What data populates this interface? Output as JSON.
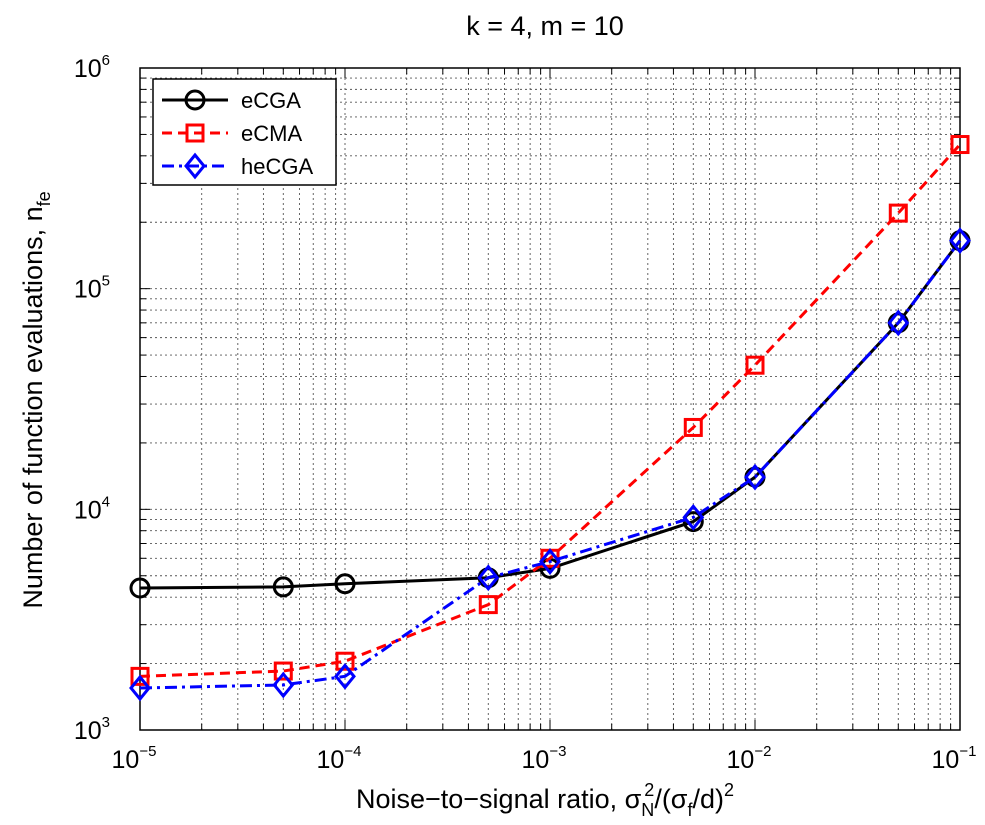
{
  "chart_data": {
    "type": "line",
    "title": "k = 4, m = 10",
    "xlabel": {
      "prefix": "Noise−to−signal ratio, σ",
      "sub1": "N",
      "sup1": "2",
      "mid": "/(σ",
      "sub2": "f",
      "suffix": "/d)",
      "sup2": "2"
    },
    "ylabel": {
      "prefix": "Number of function evaluations, n",
      "sub": "fe"
    },
    "xscale": "log",
    "yscale": "log",
    "xlim": [
      1e-05,
      0.1
    ],
    "ylim": [
      1000,
      1000000
    ],
    "grid": true,
    "legend_position": "top-left",
    "x_ticks": [
      {
        "base": "10",
        "exp": "−5",
        "value": 1e-05
      },
      {
        "base": "10",
        "exp": "−4",
        "value": 0.0001
      },
      {
        "base": "10",
        "exp": "−3",
        "value": 0.001
      },
      {
        "base": "10",
        "exp": "−2",
        "value": 0.01
      },
      {
        "base": "10",
        "exp": "−1",
        "value": 0.1
      }
    ],
    "y_ticks": [
      {
        "base": "10",
        "exp": "3",
        "value": 1000
      },
      {
        "base": "10",
        "exp": "4",
        "value": 10000
      },
      {
        "base": "10",
        "exp": "5",
        "value": 100000
      },
      {
        "base": "10",
        "exp": "6",
        "value": 1000000
      }
    ],
    "x": [
      1e-05,
      5e-05,
      0.0001,
      0.0005,
      0.001,
      0.005,
      0.01,
      0.05,
      0.1
    ],
    "series": [
      {
        "name": "eCGA",
        "color": "#000000",
        "line_style": "solid",
        "marker": "circle",
        "values": [
          4400,
          4450,
          4600,
          4900,
          5400,
          8800,
          14000,
          70000,
          165000
        ]
      },
      {
        "name": "eCMA",
        "color": "#ff0000",
        "line_style": "dashed",
        "marker": "square",
        "values": [
          1750,
          1850,
          2050,
          3700,
          6000,
          23500,
          45000,
          220000,
          450000
        ]
      },
      {
        "name": "heCGA",
        "color": "#0000ff",
        "line_style": "dashdot",
        "marker": "diamond",
        "values": [
          1550,
          1600,
          1750,
          4900,
          5800,
          9200,
          14000,
          70000,
          165000
        ]
      }
    ]
  }
}
